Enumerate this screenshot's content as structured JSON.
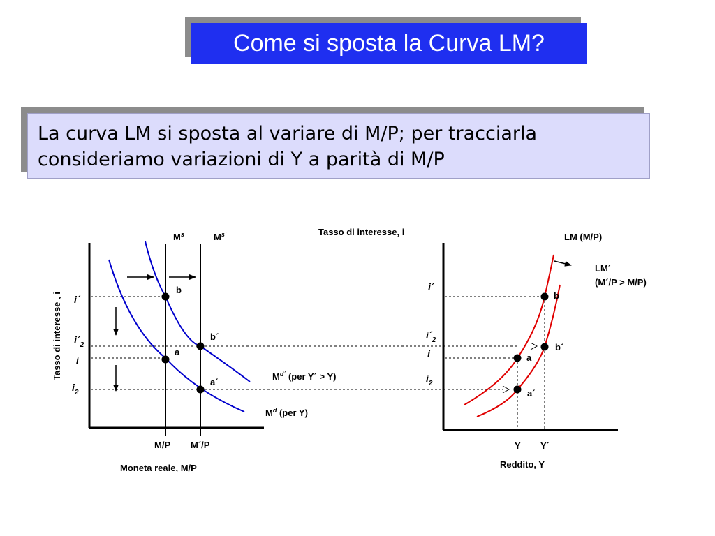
{
  "title": "Come si sposta la Curva LM?",
  "subtitle": {
    "line1": "La curva LM si sposta al variare di M/P; per tracciarla",
    "line2": "consideriamo variazioni di Y a parità di M/P"
  },
  "left_panel": {
    "y_axis_label": "Tasso di interesse , i",
    "x_axis_label": "Moneta reale, M/P",
    "supply_labels": {
      "ms": "M",
      "ms_sup": "s",
      "ms_prime": "M",
      "ms_prime_sup": "s´"
    },
    "x_ticks": {
      "mp": "M/P",
      "mp_prime": "M´/P"
    },
    "y_ticks": {
      "i_prime": "i´",
      "i_prime_2": "i´",
      "i_prime_2_sub": "2",
      "i": "i",
      "i_2": "i",
      "i_2_sub": "2"
    },
    "points": {
      "b": "b",
      "b_prime": "b´",
      "a": "a",
      "a_prime": "a´"
    },
    "curves": {
      "md_prime_main": "M",
      "md_prime_sup": "d´",
      "md_prime_rest": " (per Y´ > Y)",
      "md_main": "M",
      "md_sup": "d",
      "md_rest": " (per Y)"
    }
  },
  "right_panel": {
    "y_axis_label": "Tasso di interesse, i",
    "x_axis_label": "Reddito, Y",
    "x_ticks": {
      "y": "Y",
      "y_prime": "Y´"
    },
    "y_ticks": {
      "i_prime": "i´",
      "i_prime_2": "i´",
      "i_prime_2_sub": "2",
      "i": "i",
      "i_2": "i",
      "i_2_sub": "2"
    },
    "curves": {
      "lm": "LM (M/P)",
      "lm_prime_line1": "LM´",
      "lm_prime_line2": "(M´/P > M/P)"
    },
    "points": {
      "b": "b",
      "b_prime": "b´",
      "a": "a",
      "a_prime": "a´"
    }
  },
  "colors": {
    "title_bg": "#1f2ff0",
    "subtitle_bg": "#dcdcfc",
    "shadow": "#8c8c8c",
    "money_demand_curve": "#0000cc",
    "lm_curve": "#e00000"
  }
}
